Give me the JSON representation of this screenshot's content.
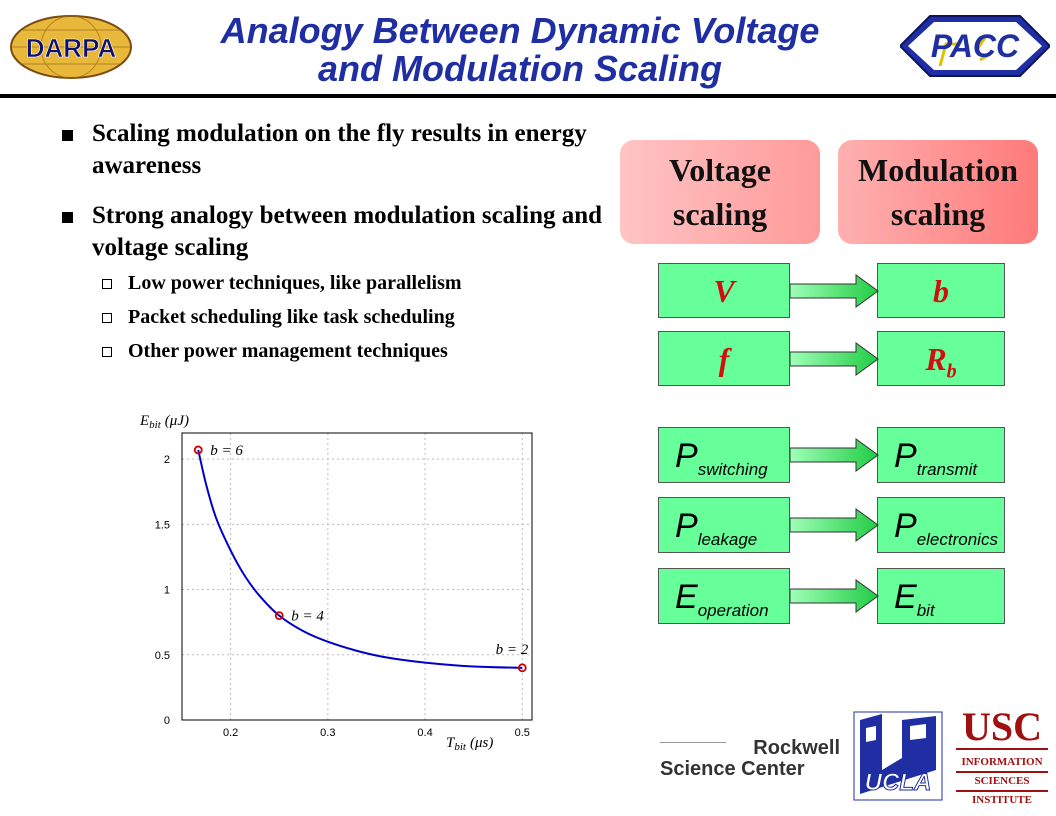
{
  "header": {
    "title_line1": "Analogy Between Dynamic Voltage",
    "title_line2": "and Modulation Scaling",
    "darpa_logo_text": "DARPA",
    "pacc_logo_text": "PACC"
  },
  "bullets": [
    {
      "text": "Scaling modulation on the fly results in energy awareness"
    },
    {
      "text": "Strong analogy between modulation scaling and voltage scaling"
    }
  ],
  "subbullets": [
    {
      "text": "Low power techniques, like parallelism"
    },
    {
      "text": "Packet scheduling like task scheduling"
    },
    {
      "text": "Other power management techniques"
    }
  ],
  "diagram": {
    "left_header_l1": "Voltage",
    "left_header_l2": "scaling",
    "right_header_l1": "Modulation",
    "right_header_l2": "scaling",
    "rows": [
      {
        "left": "V",
        "left_sub": "",
        "right": "b",
        "right_sub": ""
      },
      {
        "left": "f",
        "left_sub": "",
        "right": "R",
        "right_sub": "b"
      },
      {
        "left": "P",
        "left_sub": "switching",
        "right": "P",
        "right_sub": "transmit"
      },
      {
        "left": "P",
        "left_sub": "leakage",
        "right": "P",
        "right_sub": "electronics"
      },
      {
        "left": "E",
        "left_sub": "operation",
        "right": "E",
        "right_sub": "bit"
      }
    ]
  },
  "chart_data": {
    "type": "line",
    "ylabel_main": "E",
    "ylabel_sub": "bit",
    "ylabel_unit": "(μJ)",
    "xlabel_main": "T",
    "xlabel_sub": "bit",
    "xlabel_unit": "(μs)",
    "xlim": [
      0.15,
      0.51
    ],
    "ylim": [
      0,
      2.2
    ],
    "xticks": [
      0.2,
      0.3,
      0.4,
      0.5
    ],
    "xtick_labels": [
      "0.2",
      "0.3",
      "0.4",
      "0.5"
    ],
    "yticks": [
      0,
      0.5,
      1,
      1.5,
      2
    ],
    "ytick_labels": [
      "0",
      "0.5",
      "1",
      "1.5",
      "2"
    ],
    "grid": true,
    "curve_color": "#0000cc",
    "marker_color": "#cc0000",
    "curve": {
      "x": [
        0.1667,
        0.175,
        0.185,
        0.2,
        0.215,
        0.23,
        0.25,
        0.275,
        0.3,
        0.33,
        0.36,
        0.4,
        0.45,
        0.5
      ],
      "y": [
        2.07,
        1.8,
        1.55,
        1.3,
        1.1,
        0.95,
        0.8,
        0.68,
        0.6,
        0.53,
        0.48,
        0.44,
        0.41,
        0.4
      ]
    },
    "points": [
      {
        "x": 0.1667,
        "y": 2.07,
        "label": "b = 6"
      },
      {
        "x": 0.25,
        "y": 0.8,
        "label": "b = 4"
      },
      {
        "x": 0.5,
        "y": 0.4,
        "label": "b = 2"
      }
    ]
  },
  "footer_logos": {
    "rockwell_l1": "Rockwell",
    "rockwell_l2": "Science Center",
    "ucla": "UCLA",
    "usc": "USC",
    "isi_l1": "INFORMATION",
    "isi_l2": "SCIENCES",
    "isi_l3": "INSTITUTE"
  },
  "colors": {
    "title": "#1f2fa3",
    "box_green": "#66ff99",
    "header_pink_light": "#ffb3b3",
    "header_pink_dark": "#ff8080"
  }
}
